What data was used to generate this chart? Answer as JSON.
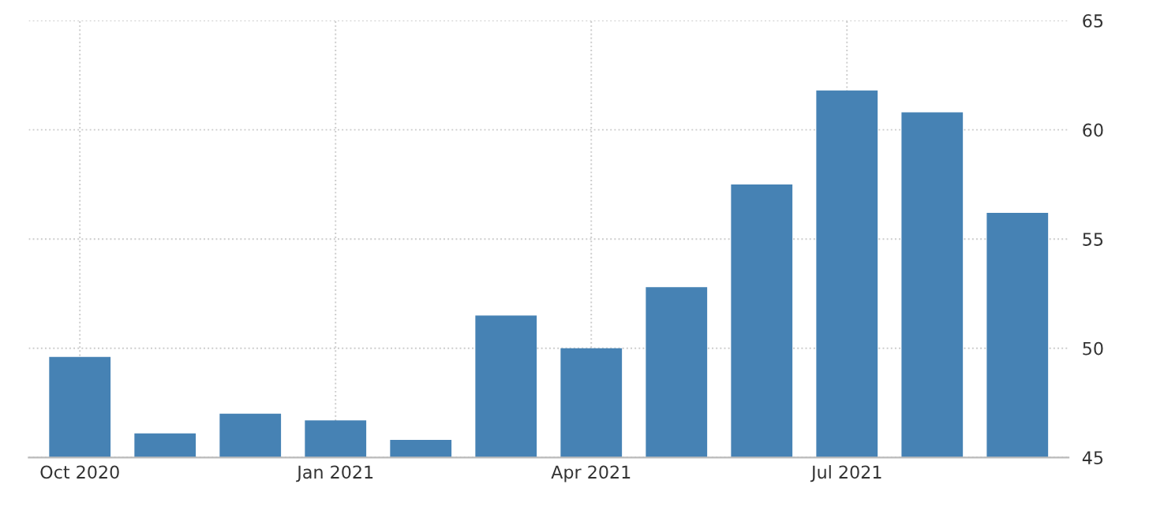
{
  "chart_data": {
    "type": "bar",
    "categories": [
      "Oct 2020",
      null,
      null,
      "Jan 2021",
      null,
      null,
      "Apr 2021",
      null,
      null,
      "Jul 2021",
      null,
      null
    ],
    "values": [
      49.6,
      46.1,
      47.0,
      46.7,
      45.8,
      51.5,
      50.0,
      52.8,
      57.5,
      61.8,
      60.8,
      56.2
    ],
    "color": "#4682b4",
    "ylim": [
      45,
      65
    ],
    "yticks": [
      45,
      50,
      55,
      60,
      65
    ],
    "grid": true
  }
}
